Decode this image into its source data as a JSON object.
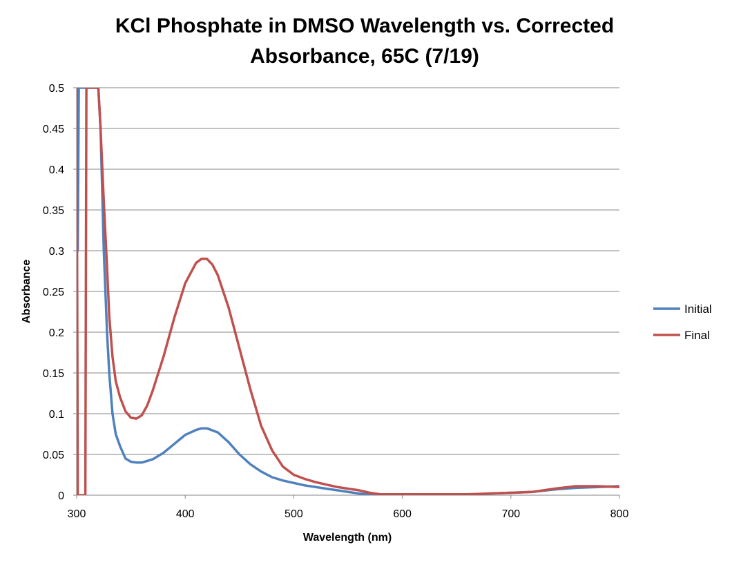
{
  "chart_data": {
    "type": "line",
    "title_lines": [
      "KCl Phosphate in DMSO Wavelength vs. Corrected",
      "Absorbance, 65C (7/19)"
    ],
    "xlabel": "Wavelength (nm)",
    "ylabel": "Absorbance",
    "xlim": [
      300,
      800
    ],
    "ylim": [
      0,
      0.5
    ],
    "x_ticks": [
      "300",
      "400",
      "500",
      "600",
      "700",
      "800"
    ],
    "y_ticks": [
      "0",
      "0.05",
      "0.1",
      "0.15",
      "0.2",
      "0.25",
      "0.3",
      "0.35",
      "0.4",
      "0.45",
      "0.5"
    ],
    "grid": "horizontal",
    "legend": "right",
    "series": [
      {
        "name": "Initial",
        "color": "#4F81BD",
        "x": [
          300,
          301,
          302,
          320,
          322,
          325,
          328,
          330,
          333,
          336,
          340,
          345,
          350,
          355,
          360,
          370,
          380,
          390,
          400,
          410,
          415,
          420,
          430,
          440,
          450,
          460,
          470,
          480,
          490,
          500,
          510,
          520,
          530,
          540,
          550,
          560,
          570,
          580,
          600,
          620,
          640,
          660,
          680,
          700,
          720,
          740,
          760,
          780,
          800
        ],
        "y": [
          0.5,
          0.3,
          0.5,
          0.5,
          0.45,
          0.3,
          0.2,
          0.15,
          0.1,
          0.075,
          0.06,
          0.045,
          0.041,
          0.04,
          0.04,
          0.044,
          0.052,
          0.063,
          0.074,
          0.08,
          0.082,
          0.082,
          0.077,
          0.065,
          0.05,
          0.038,
          0.029,
          0.022,
          0.018,
          0.015,
          0.012,
          0.01,
          0.008,
          0.006,
          0.004,
          0.002,
          0.001,
          0.0,
          0.001,
          0.001,
          0.0,
          0.0,
          0.002,
          0.003,
          0.004,
          0.007,
          0.009,
          0.01,
          0.011
        ]
      },
      {
        "name": "Final",
        "color": "#C0504D",
        "x": [
          300,
          301,
          308,
          309,
          320,
          322,
          325,
          328,
          330,
          333,
          336,
          340,
          345,
          350,
          355,
          360,
          365,
          370,
          380,
          390,
          400,
          410,
          415,
          420,
          425,
          430,
          440,
          450,
          460,
          470,
          480,
          490,
          500,
          510,
          520,
          530,
          540,
          550,
          560,
          570,
          580,
          600,
          620,
          640,
          660,
          680,
          700,
          720,
          740,
          760,
          780,
          800
        ],
        "y": [
          0.5,
          0.0,
          0.0,
          0.5,
          0.5,
          0.45,
          0.36,
          0.28,
          0.22,
          0.17,
          0.14,
          0.12,
          0.103,
          0.095,
          0.094,
          0.098,
          0.11,
          0.128,
          0.17,
          0.218,
          0.26,
          0.285,
          0.29,
          0.29,
          0.283,
          0.27,
          0.23,
          0.18,
          0.13,
          0.085,
          0.055,
          0.035,
          0.025,
          0.02,
          0.016,
          0.013,
          0.01,
          0.008,
          0.006,
          0.003,
          0.001,
          0.001,
          0.001,
          0.001,
          0.001,
          0.002,
          0.003,
          0.004,
          0.008,
          0.011,
          0.011,
          0.01
        ]
      }
    ]
  }
}
